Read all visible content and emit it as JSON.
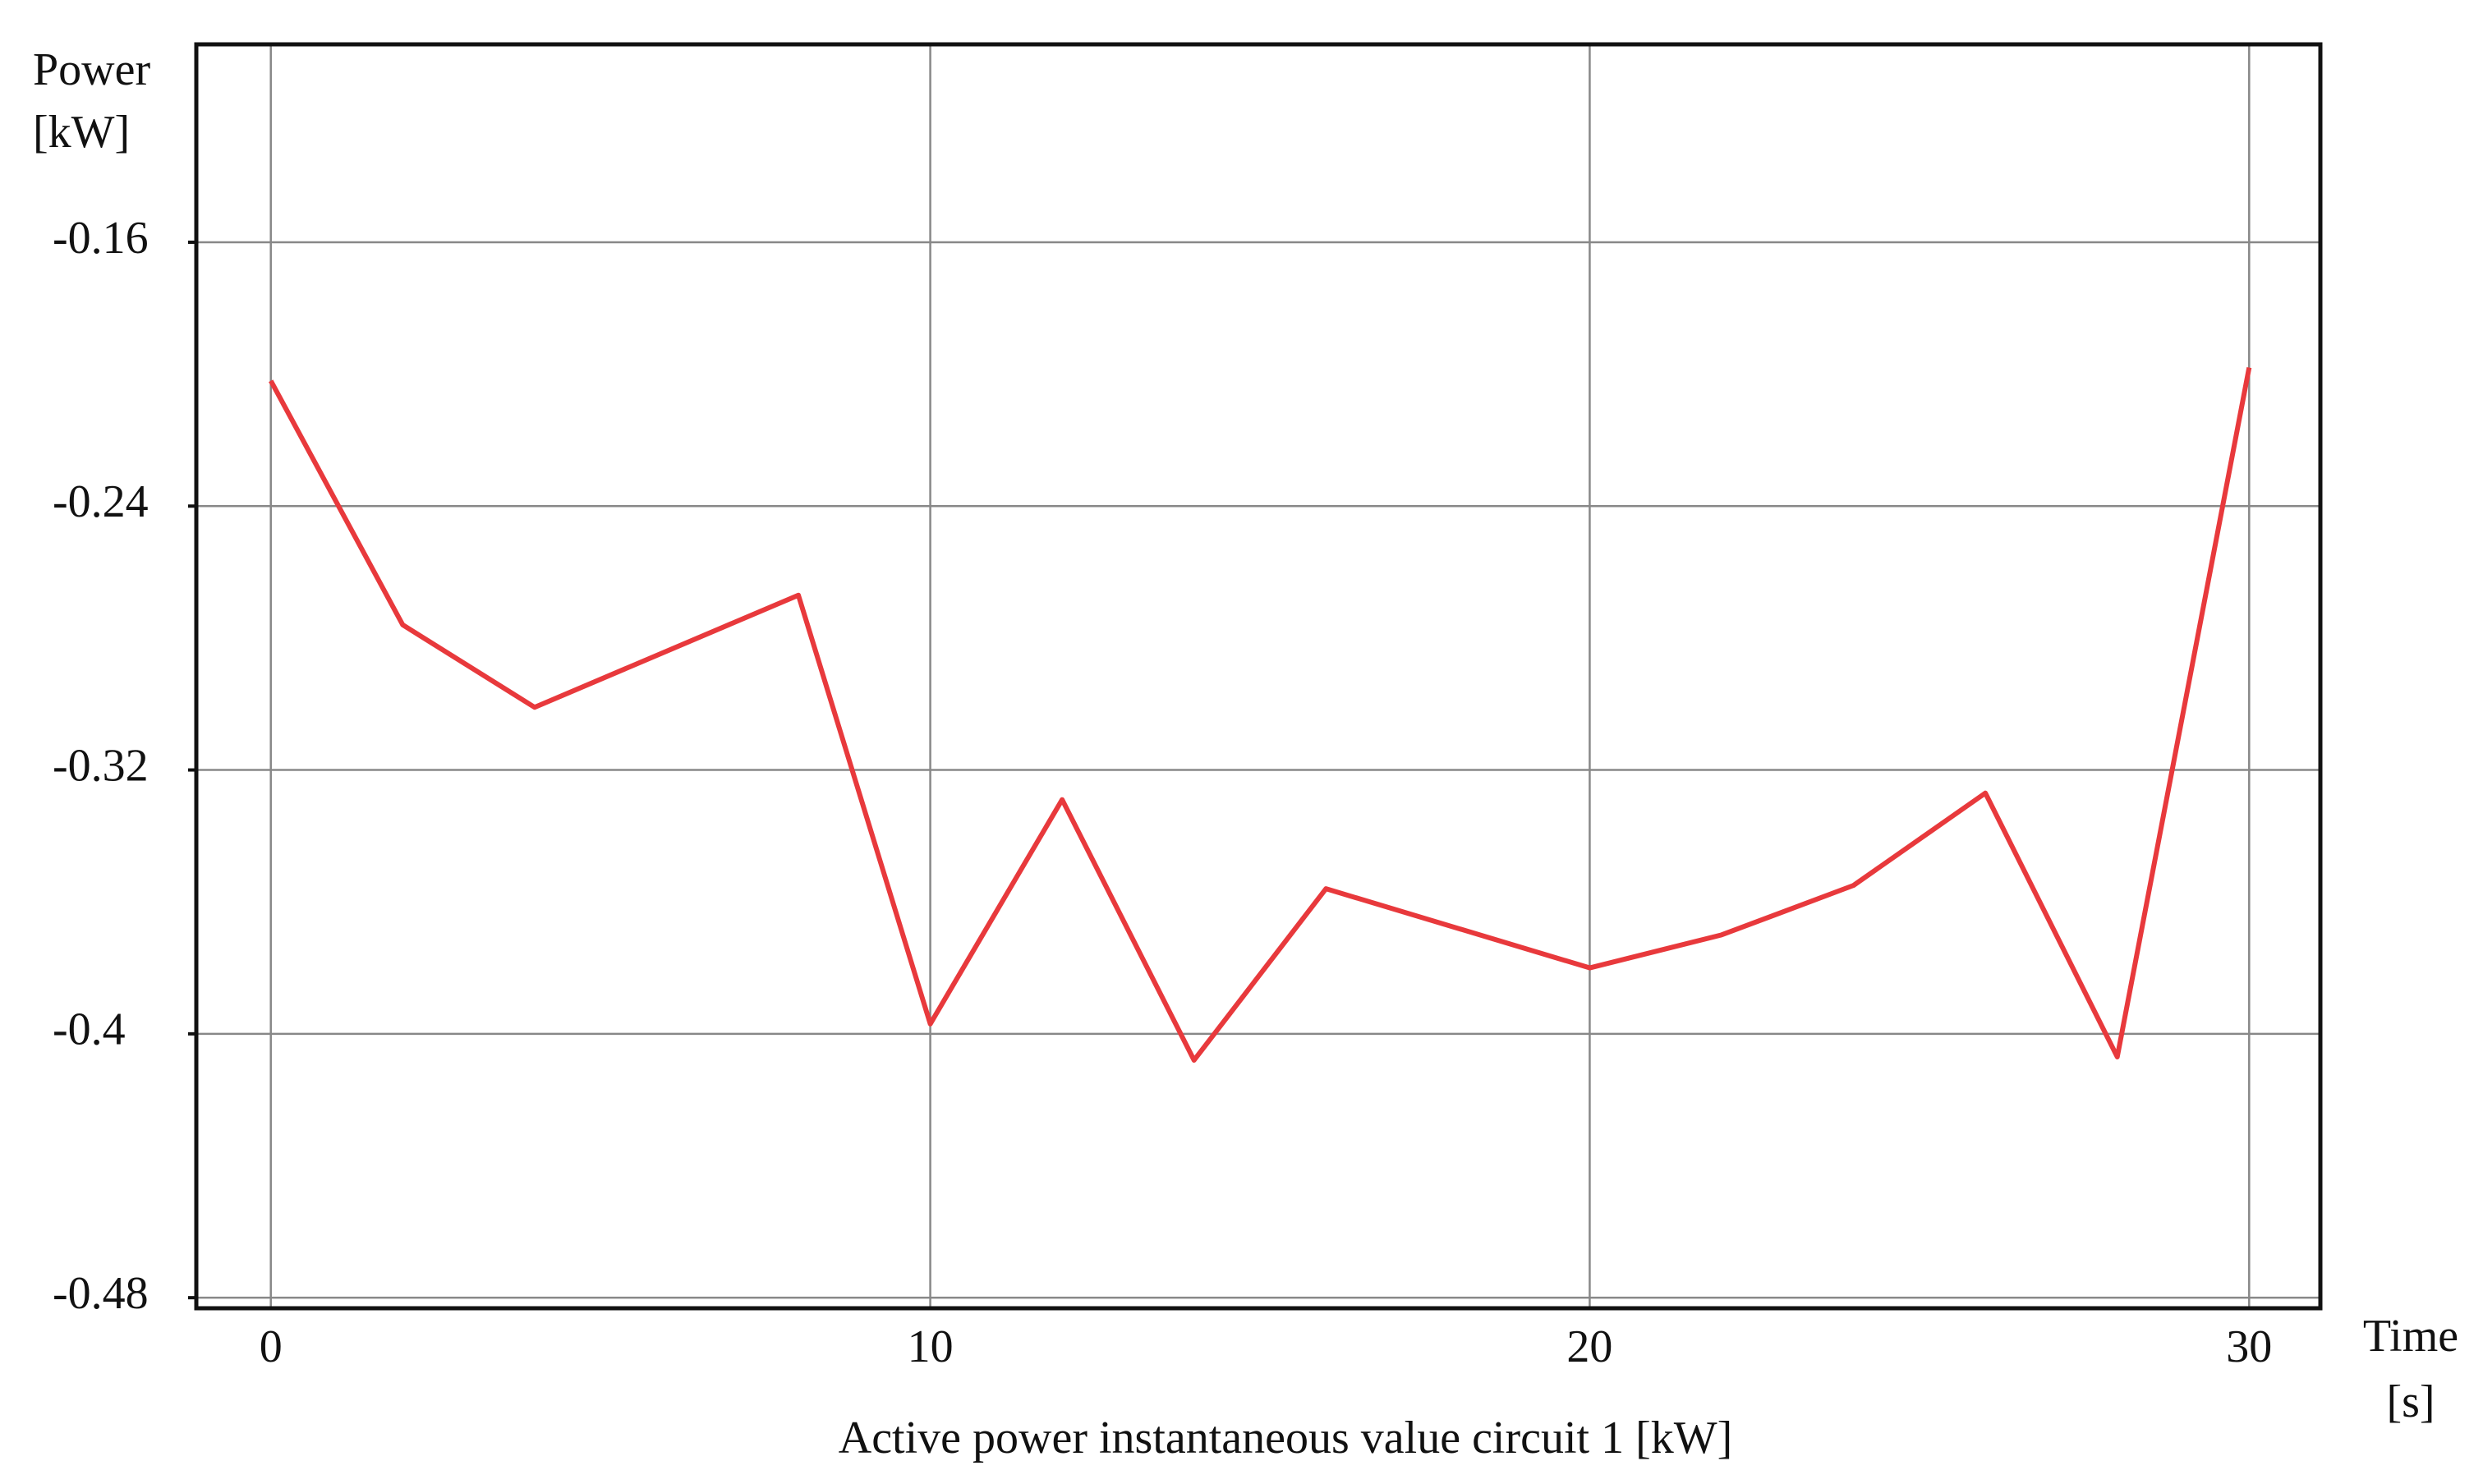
{
  "chart_data": {
    "type": "line",
    "title": "Active power instantaneous value circuit 1 [kW]",
    "ylabel": [
      "Power",
      "[kW]"
    ],
    "xlabel": [
      "Time",
      "[s]"
    ],
    "x": [
      0,
      2,
      4,
      8,
      10,
      12,
      14,
      16,
      20,
      22,
      24,
      26,
      28,
      30
    ],
    "series": [
      {
        "color": "#e8393c",
        "values": [
          -0.202,
          -0.276,
          -0.301,
          -0.267,
          -0.397,
          -0.329,
          -0.408,
          -0.356,
          -0.38,
          -0.37,
          -0.355,
          -0.327,
          -0.407,
          -0.198
        ]
      }
    ],
    "xlim": [
      -1.13,
      31.08
    ],
    "ylim": [
      -0.4832,
      -0.1
    ],
    "xticks": [
      0,
      10,
      20,
      30
    ],
    "yticks": [
      -0.16,
      -0.24,
      -0.32,
      -0.4,
      -0.48
    ],
    "grid": true
  }
}
